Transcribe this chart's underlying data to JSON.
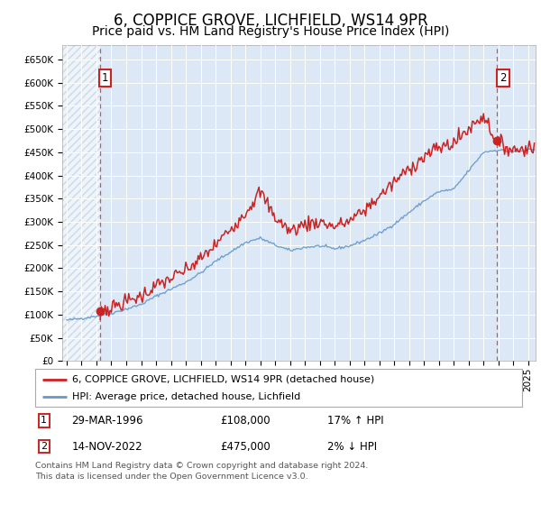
{
  "title": "6, COPPICE GROVE, LICHFIELD, WS14 9PR",
  "subtitle": "Price paid vs. HM Land Registry's House Price Index (HPI)",
  "title_fontsize": 12,
  "subtitle_fontsize": 10,
  "ylim": [
    0,
    680000
  ],
  "yticks": [
    0,
    50000,
    100000,
    150000,
    200000,
    250000,
    300000,
    350000,
    400000,
    450000,
    500000,
    550000,
    600000,
    650000
  ],
  "ytick_labels": [
    "£0",
    "£50K",
    "£100K",
    "£150K",
    "£200K",
    "£250K",
    "£300K",
    "£350K",
    "£400K",
    "£450K",
    "£500K",
    "£550K",
    "£600K",
    "£650K"
  ],
  "xlim_start": 1993.7,
  "xlim_end": 2025.5,
  "xtick_years": [
    1994,
    1995,
    1996,
    1997,
    1998,
    1999,
    2000,
    2001,
    2002,
    2003,
    2004,
    2005,
    2006,
    2007,
    2008,
    2009,
    2010,
    2011,
    2012,
    2013,
    2014,
    2015,
    2016,
    2017,
    2018,
    2019,
    2020,
    2021,
    2022,
    2023,
    2024,
    2025
  ],
  "bg_color": "#dce8f5",
  "grid_color": "#ffffff",
  "red_line_color": "#cc2222",
  "blue_line_color": "#6699cc",
  "purchase1_x": 1996.23,
  "purchase1_y": 108000,
  "purchase2_x": 2022.87,
  "purchase2_y": 475000,
  "vline_color": "#cc2222",
  "marker_color": "#cc2222",
  "legend_label_red": "6, COPPICE GROVE, LICHFIELD, WS14 9PR (detached house)",
  "legend_label_blue": "HPI: Average price, detached house, Lichfield",
  "annotation1_label": "1",
  "annotation2_label": "2",
  "table_row1": [
    "1",
    "29-MAR-1996",
    "£108,000",
    "17% ↑ HPI"
  ],
  "table_row2": [
    "2",
    "14-NOV-2022",
    "£475,000",
    "2% ↓ HPI"
  ],
  "footer": "Contains HM Land Registry data © Crown copyright and database right 2024.\nThis data is licensed under the Open Government Licence v3.0.",
  "hpi_anchors_x": [
    1994,
    1995,
    1996,
    1997,
    1998,
    1999,
    2000,
    2001,
    2002,
    2003,
    2004,
    2005,
    2006,
    2007,
    2008,
    2009,
    2010,
    2011,
    2012,
    2013,
    2014,
    2015,
    2016,
    2017,
    2018,
    2019,
    2020,
    2021,
    2022,
    2023,
    2024,
    2025
  ],
  "hpi_anchors_y": [
    88000,
    92000,
    97000,
    103000,
    112000,
    122000,
    140000,
    155000,
    170000,
    190000,
    215000,
    235000,
    255000,
    265000,
    250000,
    238000,
    245000,
    248000,
    242000,
    248000,
    260000,
    275000,
    295000,
    320000,
    345000,
    365000,
    370000,
    410000,
    450000,
    455000,
    450000,
    455000
  ],
  "prop_anchors_x": [
    1996.23,
    1997,
    1998,
    1999,
    2000,
    2001,
    2002,
    2003,
    2004,
    2005,
    2006,
    2007,
    2008,
    2009,
    2010,
    2011,
    2012,
    2013,
    2014,
    2015,
    2016,
    2017,
    2018,
    2019,
    2020,
    2021,
    2022,
    2022.87,
    2023,
    2024,
    2025
  ],
  "prop_anchors_y": [
    108000,
    115000,
    128000,
    140000,
    162000,
    178000,
    195000,
    220000,
    250000,
    285000,
    320000,
    365000,
    310000,
    280000,
    295000,
    300000,
    290000,
    302000,
    325000,
    355000,
    385000,
    415000,
    440000,
    460000,
    470000,
    500000,
    530000,
    475000,
    470000,
    455000,
    460000
  ]
}
